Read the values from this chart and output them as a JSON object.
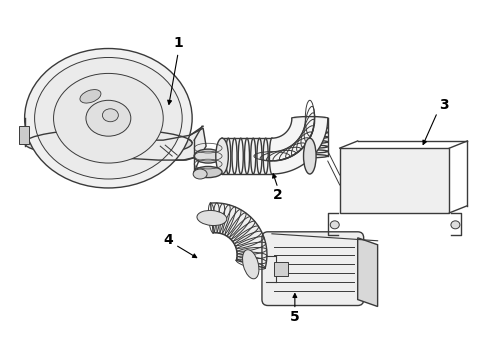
{
  "background_color": "#ffffff",
  "line_color": "#3a3a3a",
  "fill_color": "#e8e8e8",
  "text_color": "#000000",
  "label_fontsize": 10,
  "fig_width": 4.9,
  "fig_height": 3.6,
  "dpi": 100
}
